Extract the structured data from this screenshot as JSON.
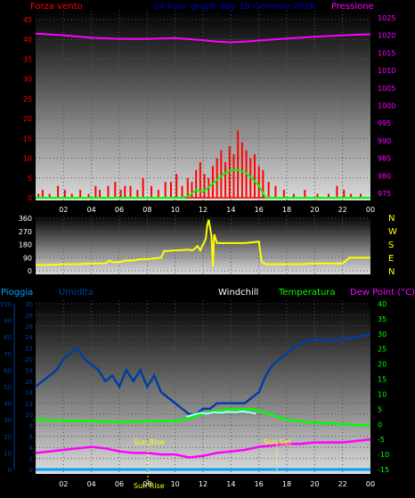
{
  "header": {
    "left": "Forza vento",
    "center": "24 hour graph day 19 Gennaio 2016",
    "right": "Pressione"
  },
  "wind_dir_labels": [
    "N",
    "W",
    "S",
    "E",
    "N"
  ],
  "bottom_labels": {
    "rain": "Pioggia",
    "humidity": "Umidita",
    "windchill": "Windchill",
    "temperature": "Temperatura",
    "dewpoint": "Dew Point (°C)"
  },
  "sun": {
    "rise": "Sun Rise",
    "set": "Sun Set"
  },
  "hour_ticks": [
    "02",
    "04",
    "06",
    "08",
    "10",
    "12",
    "14",
    "16",
    "18",
    "20",
    "22",
    "00"
  ],
  "colors": {
    "wind": "#ff0000",
    "gust_avg": "#00ff00",
    "pressure": "#ff00ff",
    "direction": "#ffff00",
    "humidity": "#003fa0",
    "temperature": "#00ff00",
    "dewpoint": "#ff00ff",
    "windchill": "#aaffff",
    "rain": "#00a0ff",
    "header_left": "#ff0000",
    "header_center": "#0000c0",
    "axis_text": "#ffffff"
  },
  "chart_data": [
    {
      "type": "bar",
      "title": "Forza vento / Pressione",
      "x_range_hours": [
        0,
        24
      ],
      "y_left": {
        "label": "Forza vento",
        "ticks": [
          0,
          5,
          10,
          15,
          20,
          25,
          30,
          35,
          40,
          45
        ],
        "range": [
          0,
          45
        ]
      },
      "y_right": {
        "label": "Pressione",
        "ticks": [
          975,
          980,
          985,
          990,
          995,
          1000,
          1005,
          1010,
          1015,
          1020,
          1025
        ],
        "range": [
          973,
          1027
        ]
      },
      "series": [
        {
          "name": "Wind speed",
          "x": [
            0.2,
            0.5,
            1.0,
            1.6,
            2.1,
            2.6,
            3.2,
            3.8,
            4.3,
            4.6,
            5.2,
            5.7,
            6.1,
            6.4,
            6.8,
            7.3,
            7.7,
            8.3,
            8.8,
            9.3,
            9.7,
            10.1,
            10.5,
            10.9,
            11.2,
            11.5,
            11.8,
            12.1,
            12.4,
            12.7,
            13.0,
            13.3,
            13.6,
            13.9,
            14.2,
            14.5,
            14.8,
            15.1,
            15.4,
            15.7,
            16.0,
            16.3,
            16.7,
            17.2,
            17.8,
            18.5,
            19.3,
            20.2,
            21.0,
            21.6,
            22.1,
            22.6,
            23.3
          ],
          "values": [
            1,
            2,
            1,
            3,
            2,
            1,
            2,
            1,
            3,
            2,
            3,
            4,
            2,
            3,
            3,
            2,
            5,
            3,
            2,
            4,
            4,
            6,
            3,
            5,
            4,
            7,
            9,
            6,
            5,
            8,
            10,
            12,
            9,
            13,
            11,
            17,
            14,
            12,
            10,
            11,
            8,
            7,
            4,
            3,
            2,
            1,
            2,
            1,
            1,
            3,
            2,
            1,
            1
          ]
        },
        {
          "name": "Average wind",
          "x": [
            0,
            10.5,
            11.0,
            11.5,
            12.0,
            12.5,
            13.0,
            13.5,
            14.0,
            14.5,
            15.0,
            15.5,
            16.0,
            16.5,
            24
          ],
          "values": [
            0,
            0,
            0.5,
            2,
            1.5,
            3,
            4.5,
            6,
            7,
            7,
            6.5,
            5,
            3,
            0,
            0
          ]
        },
        {
          "name": "Pressione",
          "x": [
            0,
            2,
            4,
            6,
            8,
            10,
            12,
            13,
            14,
            15,
            16,
            18,
            20,
            22,
            24
          ],
          "values": [
            1020.5,
            1020,
            1019.3,
            1019,
            1019,
            1019.2,
            1018.6,
            1018.2,
            1018,
            1018.2,
            1018.5,
            1019.1,
            1019.6,
            1020,
            1020.3
          ]
        }
      ]
    },
    {
      "type": "line",
      "title": "Wind direction",
      "y_ticks": [
        0,
        90,
        180,
        270,
        360
      ],
      "y_range": [
        0,
        360
      ],
      "series": [
        {
          "name": "Direction",
          "x": [
            0,
            1,
            2,
            3,
            4,
            5,
            5.3,
            5.5,
            6,
            6.5,
            7,
            7.5,
            8,
            9,
            9.2,
            10,
            11,
            11.2,
            11.4,
            11.6,
            11.8,
            12,
            12.2,
            12.3,
            12.4,
            12.5,
            12.6,
            12.7,
            12.8,
            13,
            14,
            15,
            16,
            16.2,
            16.5,
            17,
            18,
            19,
            20,
            21,
            22,
            22.5,
            23,
            24
          ],
          "values": [
            40,
            40,
            45,
            45,
            50,
            50,
            70,
            60,
            60,
            70,
            70,
            80,
            80,
            90,
            135,
            140,
            145,
            140,
            150,
            170,
            140,
            180,
            220,
            310,
            350,
            300,
            240,
            30,
            250,
            190,
            190,
            190,
            200,
            60,
            45,
            45,
            45,
            45,
            50,
            50,
            50,
            90,
            90,
            90
          ]
        }
      ]
    },
    {
      "type": "line",
      "title": "Umidita / Temperatura / Dew Point",
      "y_left_rain": {
        "label": "Pioggia",
        "ticks": [
          0,
          10,
          20,
          30,
          40,
          50,
          60,
          70,
          80,
          90,
          100
        ],
        "range": [
          0,
          100
        ]
      },
      "y_left_humidity": {
        "label": "Umidita",
        "ticks": [
          0,
          2,
          4,
          6,
          8,
          10,
          12,
          14,
          16,
          18,
          20,
          22,
          24,
          26,
          28,
          30
        ],
        "range": [
          0,
          30
        ]
      },
      "y_right_temp": {
        "label": "Dew Point (°C)",
        "ticks": [
          -15,
          -10,
          -5,
          0,
          5,
          10,
          15,
          20,
          25,
          30,
          35,
          40
        ],
        "range": [
          -15,
          40
        ]
      },
      "series": [
        {
          "name": "Umidita",
          "axis": "humidity",
          "x": [
            0,
            0.5,
            1,
            1.5,
            2,
            2.5,
            3,
            3.5,
            4,
            4.5,
            5,
            5.5,
            6,
            6.5,
            7,
            7.5,
            8,
            8.5,
            9,
            9.5,
            10,
            10.5,
            11,
            11.5,
            12,
            12.5,
            13,
            13.5,
            14,
            14.5,
            15,
            15.5,
            16,
            16.5,
            17,
            17.5,
            18,
            18.5,
            19,
            20,
            21,
            22,
            23,
            24
          ],
          "values": [
            15,
            16,
            17,
            18,
            20,
            21,
            22,
            20,
            19,
            18,
            16,
            17,
            15,
            18,
            16,
            18,
            15,
            17,
            14,
            13,
            12,
            11,
            10,
            10,
            11,
            11,
            12,
            12,
            12,
            12,
            12,
            13,
            14,
            17,
            19,
            20,
            21,
            22,
            23,
            23.5,
            23.5,
            23.5,
            24,
            24.5
          ]
        },
        {
          "name": "Temperatura",
          "axis": "temp",
          "x": [
            0,
            2,
            4,
            6,
            8,
            10,
            11,
            12,
            13,
            14,
            15,
            15.5,
            16,
            17,
            18,
            20,
            22,
            24
          ],
          "values": [
            1.5,
            1.2,
            1.0,
            0.8,
            1.0,
            1.0,
            2.0,
            3.5,
            4.5,
            5.0,
            5.0,
            5.0,
            4.5,
            3.0,
            1.5,
            0.5,
            0,
            -0.5
          ]
        },
        {
          "name": "Windchill",
          "axis": "temp",
          "x": [
            10.8,
            11.3,
            11.8,
            12.3,
            12.8,
            13.3,
            13.8,
            14.3,
            14.8,
            15.3,
            15.8
          ],
          "values": [
            2.5,
            3.2,
            3.8,
            3.5,
            4.0,
            3.8,
            4.2,
            4.0,
            4.3,
            4.0,
            3.5
          ]
        },
        {
          "name": "Dew Point",
          "axis": "temp",
          "x": [
            0,
            1,
            2,
            3,
            4,
            5,
            6,
            7,
            8,
            9,
            10,
            11,
            12,
            13,
            14,
            15,
            16,
            17,
            18,
            19,
            20,
            22,
            24
          ],
          "values": [
            -9.5,
            -9,
            -8.5,
            -8,
            -7.5,
            -8,
            -9,
            -9.5,
            -9.5,
            -10,
            -10,
            -11,
            -10.5,
            -9.5,
            -9,
            -8.5,
            -7.5,
            -7,
            -6.5,
            -6.5,
            -6,
            -6,
            -5
          ]
        },
        {
          "name": "Pioggia",
          "axis": "rain",
          "x": [
            0,
            24
          ],
          "values": [
            0,
            0
          ]
        }
      ]
    }
  ]
}
